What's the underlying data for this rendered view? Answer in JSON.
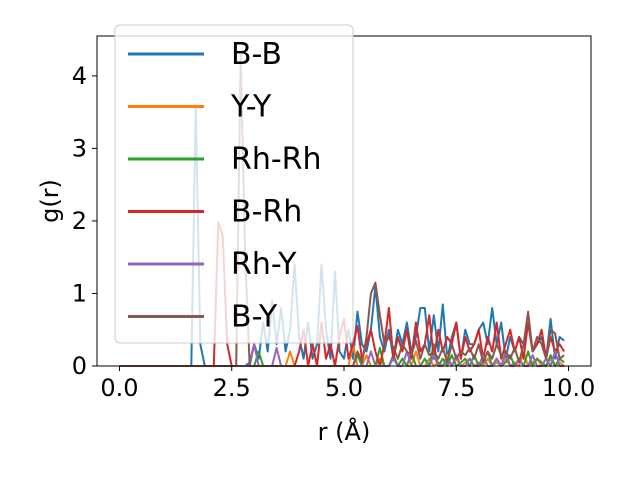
{
  "chart_data": {
    "type": "line",
    "xlabel": "r (Å)",
    "ylabel": "g(r)",
    "xlim": [
      -0.5,
      10.5
    ],
    "ylim": [
      0,
      4.55
    ],
    "xticks": [
      0.0,
      2.5,
      5.0,
      7.5,
      10.0
    ],
    "xtick_labels": [
      "0.0",
      "2.5",
      "5.0",
      "7.5",
      "10.0"
    ],
    "yticks": [
      0,
      1,
      2,
      3,
      4
    ],
    "ytick_labels": [
      "0",
      "1",
      "2",
      "3",
      "4"
    ],
    "grid": false,
    "legend_position": "top-left",
    "x": [
      0.0,
      0.1,
      0.2,
      0.3,
      0.4,
      0.5,
      0.6,
      0.7,
      0.8,
      0.9,
      1.0,
      1.1,
      1.2,
      1.3,
      1.4,
      1.5,
      1.6,
      1.7,
      1.8,
      1.9,
      2.0,
      2.1,
      2.2,
      2.3,
      2.4,
      2.5,
      2.6,
      2.7,
      2.8,
      2.9,
      3.0,
      3.1,
      3.2,
      3.3,
      3.4,
      3.5,
      3.6,
      3.7,
      3.8,
      3.9,
      4.0,
      4.1,
      4.2,
      4.3,
      4.4,
      4.5,
      4.6,
      4.7,
      4.8,
      4.9,
      5.0,
      5.1,
      5.2,
      5.3,
      5.4,
      5.5,
      5.6,
      5.7,
      5.8,
      5.9,
      6.0,
      6.1,
      6.2,
      6.3,
      6.4,
      6.5,
      6.6,
      6.7,
      6.8,
      6.9,
      7.0,
      7.1,
      7.2,
      7.3,
      7.4,
      7.5,
      7.6,
      7.7,
      7.8,
      7.9,
      8.0,
      8.1,
      8.2,
      8.3,
      8.4,
      8.5,
      8.6,
      8.7,
      8.8,
      8.9,
      9.0,
      9.1,
      9.2,
      9.3,
      9.4,
      9.5,
      9.6,
      9.7,
      9.8,
      9.9
    ],
    "series": [
      {
        "name": "B-B",
        "color": "#1f77b4",
        "values": [
          0,
          0,
          0,
          0,
          0,
          0,
          0,
          0,
          0,
          0,
          0,
          0,
          0,
          0,
          0,
          0,
          0,
          3.6,
          0.3,
          0,
          0,
          0,
          0,
          0,
          0,
          0,
          0,
          0,
          0,
          0.05,
          0.3,
          0.1,
          0.6,
          0.2,
          0.9,
          0.3,
          0.8,
          0.2,
          0.5,
          1.4,
          0.4,
          0.1,
          0.6,
          0.1,
          0.3,
          1.4,
          0.5,
          0.1,
          1.3,
          0.2,
          0.1,
          0.5,
          0.1,
          0.75,
          0.3,
          0.2,
          0.5,
          1.1,
          0.4,
          0.2,
          0.5,
          0.1,
          0.5,
          0.3,
          0.6,
          0.2,
          0.4,
          0.8,
          0.8,
          0.2,
          0.7,
          0.2,
          0.85,
          0.1,
          0.4,
          0.6,
          0.1,
          0.5,
          0.3,
          0.3,
          0.5,
          0.6,
          0.3,
          0.8,
          0.3,
          0.6,
          0.1,
          0.4,
          0.2,
          0.4,
          0.3,
          0.6,
          0.2,
          0.3,
          0.4,
          0.1,
          0.65,
          0.1,
          0.4,
          0.35
        ]
      },
      {
        "name": "Y-Y",
        "color": "#ff7f0e",
        "values": [
          0,
          0,
          0,
          0,
          0,
          0,
          0,
          0,
          0,
          0,
          0,
          0,
          0,
          0,
          0,
          0,
          0,
          0,
          0,
          0,
          0,
          0,
          0,
          0,
          0,
          0,
          0,
          0,
          0,
          0,
          0,
          0,
          0,
          0,
          0,
          0,
          0,
          0,
          0.2,
          0,
          0,
          0,
          0,
          0,
          0,
          0,
          0,
          0,
          0,
          0,
          0,
          0,
          0.3,
          0,
          0,
          0.15,
          0,
          0,
          0.1,
          0,
          0,
          0.15,
          0,
          0.1,
          0,
          0,
          0.2,
          0,
          0,
          0.1,
          0,
          0.05,
          0,
          0.15,
          0,
          0.1,
          0,
          0.05,
          0.1,
          0,
          0.05,
          0,
          0.1,
          0,
          0.05,
          0,
          0.1,
          0,
          0.05,
          0,
          0.2,
          0,
          0.05,
          0.1,
          0,
          0,
          0.1,
          0,
          0.05,
          0
        ]
      },
      {
        "name": "Rh-Rh",
        "color": "#2ca02c",
        "values": [
          0,
          0,
          0,
          0,
          0,
          0,
          0,
          0,
          0,
          0,
          0,
          0,
          0,
          0,
          0,
          0,
          0,
          0,
          0,
          0,
          0,
          0,
          0,
          0,
          0,
          0,
          0,
          0,
          0,
          0,
          0,
          0.2,
          0,
          0,
          0,
          0,
          0,
          0,
          0,
          0,
          0,
          0,
          0,
          0,
          0,
          0,
          0,
          0,
          0,
          0,
          0,
          0,
          0,
          0.15,
          0,
          0,
          0,
          0,
          0.25,
          0,
          0,
          0.15,
          0,
          0.1,
          0,
          0.2,
          0,
          0,
          0.1,
          0,
          0.3,
          0,
          0.1,
          0,
          0.15,
          0,
          0.05,
          0.1,
          0,
          0.15,
          0,
          0.05,
          0.2,
          0,
          0.1,
          0,
          0.05,
          0.15,
          0,
          0.1,
          0,
          0.2,
          0,
          0.1,
          0.05,
          0,
          0.15,
          0,
          0.1,
          0.05
        ]
      },
      {
        "name": "B-Rh",
        "color": "#d62728",
        "values": [
          0,
          0,
          0,
          0,
          0,
          0,
          0,
          0,
          0,
          0,
          0,
          0,
          0,
          0,
          0,
          0,
          0,
          0,
          0,
          0,
          0,
          0,
          1.98,
          1.8,
          0.3,
          0,
          0,
          0,
          0,
          0,
          0,
          0,
          0,
          0,
          0,
          0,
          0,
          0,
          0,
          0,
          0.2,
          0.5,
          0,
          0.3,
          0,
          0.6,
          0.1,
          0.3,
          0,
          0.4,
          0.65,
          0.1,
          0.3,
          0.55,
          0.1,
          0.3,
          0.5,
          0.2,
          0,
          0.3,
          0.8,
          0.1,
          0.4,
          0.2,
          0.5,
          0.1,
          0.6,
          0.2,
          0.3,
          0.7,
          0.1,
          0.5,
          0.2,
          0.4,
          0.3,
          0.6,
          0.1,
          0.4,
          0.2,
          0.3,
          0.5,
          0.1,
          0.4,
          0.2,
          0.6,
          0.1,
          0.3,
          0.5,
          0.2,
          0.4,
          0.1,
          0.6,
          0.2,
          0.3,
          0.5,
          0.1,
          0.4,
          0.2,
          0.3,
          0.2
        ]
      },
      {
        "name": "Rh-Y",
        "color": "#9467bd",
        "values": [
          0,
          0,
          0,
          0,
          0,
          0,
          0,
          0,
          0,
          0,
          0,
          0,
          0,
          0,
          0,
          0,
          0,
          0,
          0,
          0,
          0,
          0,
          0,
          0,
          0,
          0,
          0,
          0,
          0,
          0,
          0.3,
          0,
          0,
          0,
          0,
          0.25,
          0,
          0,
          0,
          0,
          0,
          0,
          0,
          0,
          0,
          0,
          0,
          0,
          0,
          0,
          0,
          0,
          0,
          0,
          0,
          0,
          0.2,
          0,
          0,
          0,
          0,
          0.1,
          0,
          0,
          0.2,
          0,
          0,
          0,
          0,
          0,
          0.15,
          0,
          0,
          0.1,
          0,
          0.15,
          0,
          0,
          0.1,
          0,
          0,
          0.15,
          0,
          0,
          0.1,
          0,
          0.2,
          0,
          0,
          0.1,
          0,
          0,
          0.15,
          0,
          0,
          0.1,
          0,
          0.2,
          0,
          0
        ]
      },
      {
        "name": "B-Y",
        "color": "#8c564b",
        "values": [
          0,
          0,
          0,
          0,
          0,
          0,
          0,
          0,
          0,
          0,
          0,
          0,
          0,
          0,
          0,
          0,
          0,
          0,
          0,
          0,
          0,
          0,
          0,
          0,
          0,
          0,
          0,
          4.3,
          1.5,
          0,
          0,
          0,
          0,
          0,
          0,
          0,
          0,
          0,
          0,
          0,
          0,
          0,
          0,
          0,
          0,
          0,
          0,
          0,
          0,
          0,
          0,
          0,
          0,
          0.2,
          0.05,
          0.4,
          1.0,
          1.15,
          0.7,
          0.3,
          0.4,
          0.25,
          0.1,
          0.3,
          0.2,
          0.15,
          0.35,
          0.1,
          0.3,
          0.15,
          0.2,
          0.1,
          0.25,
          0.05,
          0.3,
          0.1,
          0.2,
          0.15,
          0.25,
          0.1,
          0.3,
          0.05,
          0.2,
          0.1,
          0.3,
          0.15,
          0.2,
          0.1,
          0.25,
          0.05,
          0.3,
          0.75,
          0.2,
          0.4,
          0.3,
          0.1,
          0.5,
          0.45,
          0.1,
          0.15
        ]
      }
    ]
  }
}
